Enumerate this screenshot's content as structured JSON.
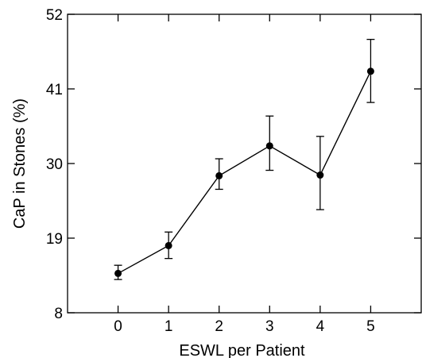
{
  "chart_data": {
    "type": "line",
    "xlabel": "ESWL per Patient",
    "ylabel": "CaP in Stones (%)",
    "x": [
      0,
      1,
      2,
      3,
      4,
      5
    ],
    "xticks": [
      "0",
      "1",
      "2",
      "3",
      "4",
      "5"
    ],
    "yticks": [
      "8",
      "19",
      "30",
      "41",
      "52"
    ],
    "xlim": [
      -1,
      6
    ],
    "ylim": [
      8,
      52
    ],
    "grid": false,
    "series": [
      {
        "values": [
          13.8,
          17.9,
          28.2,
          32.6,
          28.3,
          43.6
        ],
        "error_low": [
          12.9,
          16.0,
          26.2,
          29.0,
          23.2,
          39.0
        ],
        "error_high": [
          15.0,
          19.9,
          30.7,
          37.0,
          34.0,
          48.3
        ],
        "marker": "circle",
        "color": "#000000"
      }
    ]
  }
}
